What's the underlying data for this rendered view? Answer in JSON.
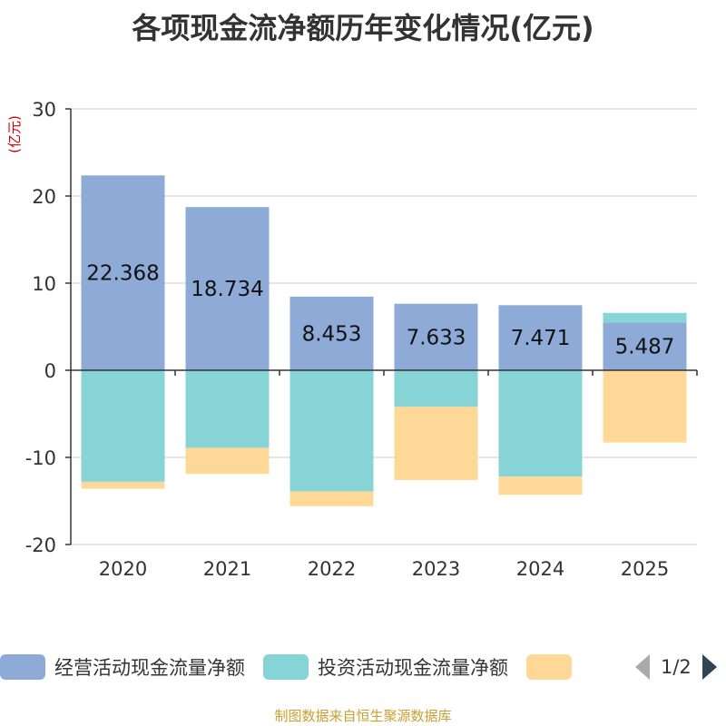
{
  "chart_data": {
    "type": "bar",
    "stacked": true,
    "title": "各项现金流净额历年变化情况(亿元)",
    "ylabel": "(亿元)",
    "xlabel": "",
    "ylim": [
      -20,
      30
    ],
    "yticks": [
      -20,
      -10,
      0,
      10,
      20,
      30
    ],
    "grid": true,
    "categories": [
      "2020",
      "2021",
      "2022",
      "2023",
      "2024",
      "2025"
    ],
    "series": [
      {
        "name": "经营活动现金流量净额",
        "color": "#8eabd8",
        "values": [
          22.368,
          18.734,
          8.453,
          7.633,
          7.471,
          5.487
        ],
        "labels": [
          "22.368",
          "18.734",
          "8.453",
          "7.633",
          "7.471",
          "5.487"
        ]
      },
      {
        "name": "投资活动现金流量净额",
        "color": "#86d4d6",
        "values": [
          -12.8,
          -8.9,
          -13.9,
          -4.2,
          -12.2,
          1.1
        ]
      },
      {
        "name": "",
        "color": "#fdd896",
        "values": [
          -0.8,
          -3.0,
          -1.7,
          -8.4,
          -2.1,
          -8.3
        ]
      }
    ]
  },
  "legend": {
    "items": [
      {
        "label": "经营活动现金流量净额",
        "color": "#8eabd8"
      },
      {
        "label": "投资活动现金流量净额",
        "color": "#86d4d6"
      },
      {
        "label": "",
        "color": "#fdd896"
      }
    ],
    "page": "1/2"
  },
  "source": "制图数据来自恒生聚源数据库"
}
